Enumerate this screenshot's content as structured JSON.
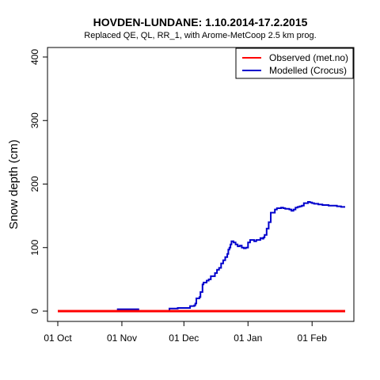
{
  "chart_data": {
    "type": "line",
    "title": "HOVDEN-LUNDANE: 1.10.2014-17.2.2015",
    "subtitle": "Replaced QE, QL, RR_1,  with Arome-MetCoop 2.5 km prog.",
    "xlabel": "",
    "ylabel": "Snow depth (cm)",
    "ylim": [
      0,
      400
    ],
    "y_ticks": [
      0,
      100,
      200,
      300,
      400
    ],
    "x_ticks": [
      {
        "label": "01 Oct",
        "day": 0
      },
      {
        "label": "01 Nov",
        "day": 31
      },
      {
        "label": "01 Dec",
        "day": 61
      },
      {
        "label": "01 Jan",
        "day": 92
      },
      {
        "label": "01 Feb",
        "day": 123
      }
    ],
    "legend": {
      "position": "top-right"
    },
    "grid": false,
    "series": [
      {
        "name": "Observed (met.no)",
        "color": "#ff0000",
        "x": [
          0,
          139
        ],
        "y": [
          0,
          0
        ]
      },
      {
        "name": "Modelled (Crocus)",
        "color": "#0000cc",
        "x": [
          0,
          28,
          29,
          38,
          39,
          53,
          54,
          58,
          62,
          64,
          66,
          66.5,
          67,
          68.5,
          69,
          70,
          70.5,
          72,
          73,
          74,
          76,
          77,
          78,
          79,
          80,
          81,
          82,
          82.5,
          83,
          83.5,
          84,
          85,
          86,
          87,
          88,
          89,
          90,
          91,
          92,
          93,
          95,
          96,
          98,
          99,
          99.5,
          100,
          101,
          102,
          103,
          105,
          106,
          108,
          109,
          110,
          112,
          113,
          114,
          115,
          116,
          117,
          118,
          119,
          121,
          122,
          123,
          124,
          125,
          126,
          127,
          128,
          129,
          130,
          131,
          132,
          133,
          134,
          135,
          136,
          137,
          138,
          139
        ],
        "y": [
          0,
          0,
          3,
          3,
          0,
          0,
          4,
          5,
          5,
          8,
          9,
          12,
          20,
          22,
          30,
          42,
          45,
          48,
          50,
          55,
          60,
          65,
          68,
          75,
          80,
          85,
          90,
          97,
          100,
          105,
          110,
          108,
          105,
          102,
          103,
          100,
          99,
          100,
          108,
          112,
          110,
          112,
          115,
          114,
          116,
          120,
          130,
          140,
          155,
          160,
          162,
          163,
          162,
          161,
          160,
          158,
          160,
          163,
          164,
          165,
          166,
          170,
          172,
          171,
          170,
          169,
          169,
          168,
          168,
          167,
          167,
          167,
          166,
          166,
          166,
          166,
          165,
          165,
          164,
          164,
          164
        ]
      }
    ]
  }
}
